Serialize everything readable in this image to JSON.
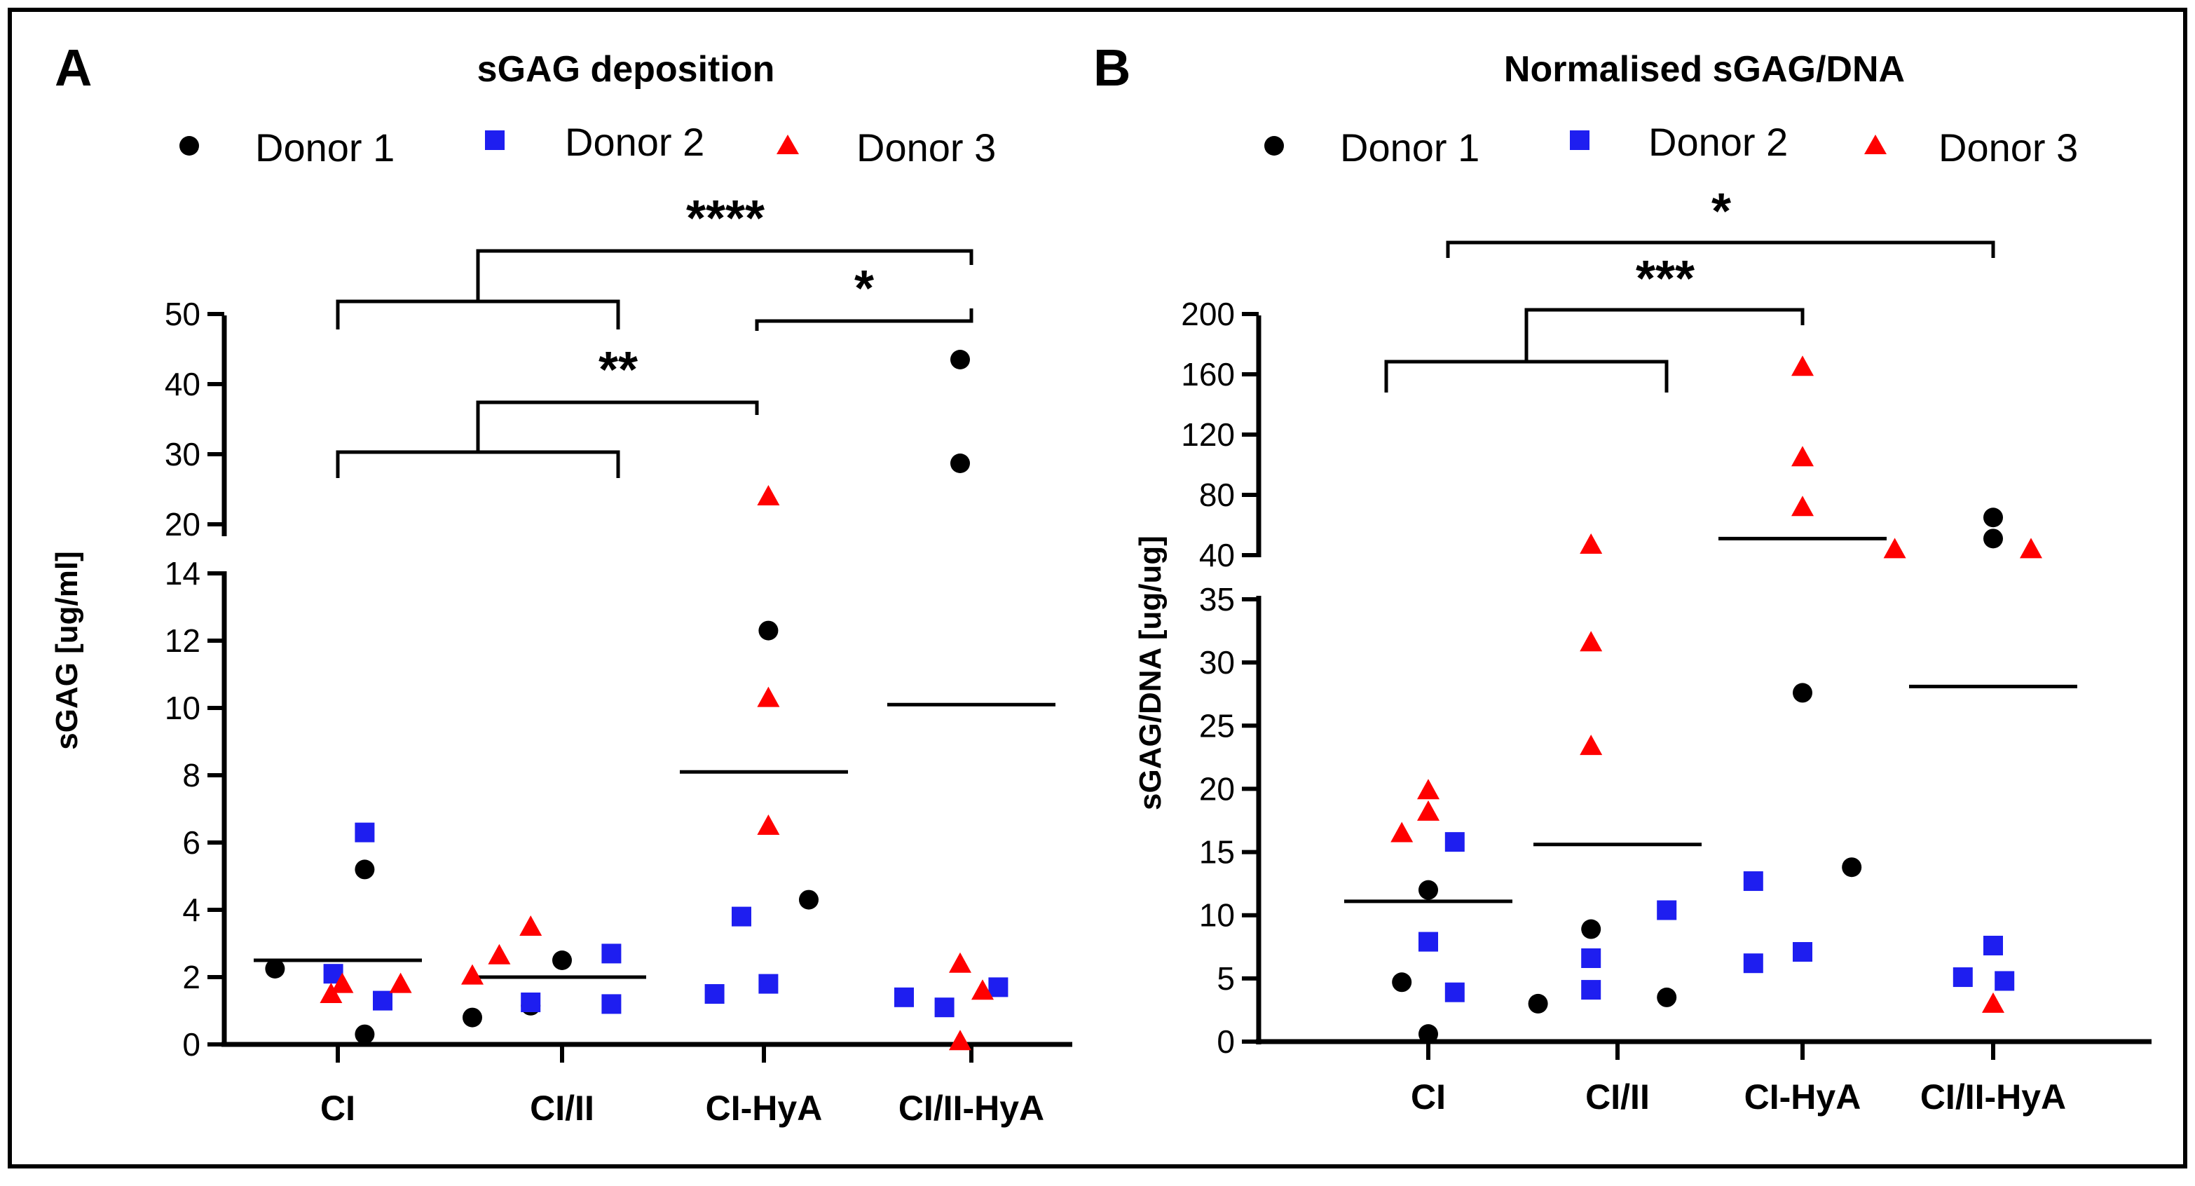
{
  "figure": {
    "border_color": "#000000"
  },
  "colors": {
    "donor1": "#000000",
    "donor2": "#1e1ef0",
    "donor3": "#ff0000",
    "axis": "#000000",
    "median": "#000000"
  },
  "legend": [
    {
      "label": "Donor 1",
      "marker": "circle",
      "series": "donor1"
    },
    {
      "label": "Donor 2",
      "marker": "square",
      "series": "donor2"
    },
    {
      "label": "Donor 3",
      "marker": "triangle",
      "series": "donor3"
    }
  ],
  "chart_data": [
    {
      "type": "scatter",
      "panel_label": "A",
      "title": "sGAG deposition",
      "ylabel": "sGAG [ug/ml]",
      "xlabel": "",
      "categories": [
        "CI",
        "CI/II",
        "CI-HyA",
        "CI/II-HyA"
      ],
      "y_axis_segments": [
        {
          "ylim": [
            0,
            14
          ],
          "ticks": [
            "0",
            "2",
            "4",
            "6",
            "8",
            "10",
            "12",
            "14"
          ],
          "tick_values": [
            0,
            2,
            4,
            6,
            8,
            10,
            12,
            14
          ]
        },
        {
          "ylim": [
            18,
            50
          ],
          "ticks": [
            "20",
            "30",
            "40",
            "50"
          ],
          "tick_values": [
            20,
            30,
            40,
            50
          ]
        }
      ],
      "median_lines": [
        2.5,
        2.0,
        8.1,
        10.1
      ],
      "series": [
        {
          "name": "Donor 1",
          "key": "donor1",
          "points": [
            {
              "category": "CI",
              "offset": -0.28,
              "y": 2.25
            },
            {
              "category": "CI",
              "offset": 0.12,
              "y": 5.2
            },
            {
              "category": "CI",
              "offset": 0.12,
              "y": 0.3
            },
            {
              "category": "CI/II",
              "offset": -0.4,
              "y": 0.8
            },
            {
              "category": "CI/II",
              "offset": -0.14,
              "y": 1.15
            },
            {
              "category": "CI/II",
              "offset": 0.0,
              "y": 2.5
            },
            {
              "category": "CI-HyA",
              "offset": 0.02,
              "y": 12.3
            },
            {
              "category": "CI-HyA",
              "offset": 0.2,
              "y": 4.3
            },
            {
              "category": "CI/II-HyA",
              "offset": -0.05,
              "y": 43.5
            },
            {
              "category": "CI/II-HyA",
              "offset": -0.05,
              "y": 28.7
            }
          ]
        },
        {
          "name": "Donor 2",
          "key": "donor2",
          "points": [
            {
              "category": "CI",
              "offset": 0.12,
              "y": 6.3
            },
            {
              "category": "CI",
              "offset": -0.02,
              "y": 2.1
            },
            {
              "category": "CI",
              "offset": 0.2,
              "y": 1.3
            },
            {
              "category": "CI/II",
              "offset": -0.14,
              "y": 1.25
            },
            {
              "category": "CI/II",
              "offset": 0.22,
              "y": 2.7
            },
            {
              "category": "CI/II",
              "offset": 0.22,
              "y": 1.2
            },
            {
              "category": "CI-HyA",
              "offset": -0.1,
              "y": 3.8
            },
            {
              "category": "CI-HyA",
              "offset": 0.02,
              "y": 1.8
            },
            {
              "category": "CI-HyA",
              "offset": -0.22,
              "y": 1.5
            },
            {
              "category": "CI/II-HyA",
              "offset": -0.3,
              "y": 1.4
            },
            {
              "category": "CI/II-HyA",
              "offset": -0.12,
              "y": 1.1
            },
            {
              "category": "CI/II-HyA",
              "offset": 0.12,
              "y": 1.7
            }
          ]
        },
        {
          "name": "Donor 3",
          "key": "donor3",
          "points": [
            {
              "category": "CI",
              "offset": 0.02,
              "y": 1.8
            },
            {
              "category": "CI",
              "offset": -0.03,
              "y": 1.5
            },
            {
              "category": "CI",
              "offset": 0.28,
              "y": 1.8
            },
            {
              "category": "CI/II",
              "offset": -0.4,
              "y": 2.05
            },
            {
              "category": "CI/II",
              "offset": -0.28,
              "y": 2.65
            },
            {
              "category": "CI/II",
              "offset": -0.14,
              "y": 3.5
            },
            {
              "category": "CI-HyA",
              "offset": 0.02,
              "y": 24.0
            },
            {
              "category": "CI-HyA",
              "offset": 0.02,
              "y": 10.3
            },
            {
              "category": "CI-HyA",
              "offset": 0.02,
              "y": 6.5
            },
            {
              "category": "CI/II-HyA",
              "offset": -0.05,
              "y": 2.4
            },
            {
              "category": "CI/II-HyA",
              "offset": 0.05,
              "y": 1.6
            },
            {
              "category": "CI/II-HyA",
              "offset": -0.05,
              "y": 0.1
            }
          ]
        }
      ],
      "significance": [
        {
          "label": "****",
          "groups": [
            "CI + CI/II",
            "CI-HyA + CI/II-HyA"
          ]
        },
        {
          "label": "*",
          "groups": [
            "CI-HyA",
            "CI/II-HyA"
          ]
        },
        {
          "label": "**",
          "groups": [
            "CI + CI/II",
            "CI-HyA"
          ]
        }
      ]
    },
    {
      "type": "scatter",
      "panel_label": "B",
      "title": "Normalised sGAG/DNA",
      "ylabel": "sGAG/DNA [ug/ug]",
      "xlabel": "",
      "categories": [
        "CI",
        "CI/II",
        "CI-HyA",
        "CI/II-HyA"
      ],
      "y_axis_segments": [
        {
          "ylim": [
            0,
            35
          ],
          "ticks": [
            "0",
            "5",
            "10",
            "15",
            "20",
            "25",
            "30",
            "35"
          ],
          "tick_values": [
            0,
            5,
            10,
            15,
            20,
            25,
            30,
            35
          ]
        },
        {
          "ylim": [
            40,
            200
          ],
          "ticks": [
            "40",
            "80",
            "120",
            "160",
            "200"
          ],
          "tick_values": [
            40,
            80,
            120,
            160,
            200
          ]
        }
      ],
      "median_lines": [
        11.1,
        15.6,
        51.0,
        28.1
      ],
      "series": [
        {
          "name": "Donor 1",
          "key": "donor1",
          "points": [
            {
              "category": "CI",
              "offset": 0.0,
              "y": 12.0
            },
            {
              "category": "CI",
              "offset": -0.14,
              "y": 4.7
            },
            {
              "category": "CI",
              "offset": 0.0,
              "y": 0.6
            },
            {
              "category": "CI/II",
              "offset": -0.14,
              "y": 8.9
            },
            {
              "category": "CI/II",
              "offset": -0.42,
              "y": 3.0
            },
            {
              "category": "CI/II",
              "offset": 0.26,
              "y": 3.5
            },
            {
              "category": "CI-HyA",
              "offset": 0.0,
              "y": 27.6
            },
            {
              "category": "CI-HyA",
              "offset": 0.26,
              "y": 13.8
            },
            {
              "category": "CI/II-HyA",
              "offset": 0.0,
              "y": 65.0
            },
            {
              "category": "CI/II-HyA",
              "offset": 0.0,
              "y": 51.0
            }
          ]
        },
        {
          "name": "Donor 2",
          "key": "donor2",
          "points": [
            {
              "category": "CI",
              "offset": 0.14,
              "y": 15.8
            },
            {
              "category": "CI",
              "offset": 0.0,
              "y": 7.9
            },
            {
              "category": "CI",
              "offset": 0.14,
              "y": 3.9
            },
            {
              "category": "CI/II",
              "offset": -0.14,
              "y": 6.6
            },
            {
              "category": "CI/II",
              "offset": -0.14,
              "y": 4.1
            },
            {
              "category": "CI/II",
              "offset": 0.26,
              "y": 10.4
            },
            {
              "category": "CI-HyA",
              "offset": -0.26,
              "y": 12.7
            },
            {
              "category": "CI-HyA",
              "offset": -0.26,
              "y": 6.2
            },
            {
              "category": "CI-HyA",
              "offset": 0.0,
              "y": 7.1
            },
            {
              "category": "CI/II-HyA",
              "offset": 0.0,
              "y": 7.6
            },
            {
              "category": "CI/II-HyA",
              "offset": -0.16,
              "y": 5.1
            },
            {
              "category": "CI/II-HyA",
              "offset": 0.06,
              "y": 4.8
            }
          ]
        },
        {
          "name": "Donor 3",
          "key": "donor3",
          "points": [
            {
              "category": "CI",
              "offset": 0.0,
              "y": 19.9
            },
            {
              "category": "CI",
              "offset": 0.0,
              "y": 18.2
            },
            {
              "category": "CI",
              "offset": -0.14,
              "y": 16.5
            },
            {
              "category": "CI/II",
              "offset": -0.14,
              "y": 47.0
            },
            {
              "category": "CI/II",
              "offset": -0.14,
              "y": 31.6
            },
            {
              "category": "CI/II",
              "offset": -0.14,
              "y": 23.4
            },
            {
              "category": "CI-HyA",
              "offset": 0.0,
              "y": 165.0
            },
            {
              "category": "CI-HyA",
              "offset": 0.0,
              "y": 105.0
            },
            {
              "category": "CI-HyA",
              "offset": 0.0,
              "y": 72.0
            },
            {
              "category": "CI/II-HyA",
              "offset": -0.52,
              "y": 44.0
            },
            {
              "category": "CI/II-HyA",
              "offset": 0.2,
              "y": 44.0
            },
            {
              "category": "CI/II-HyA",
              "offset": 0.0,
              "y": 3.0
            }
          ]
        }
      ],
      "significance": [
        {
          "label": "*",
          "groups": [
            "CI",
            "CI/II-HyA"
          ]
        },
        {
          "label": "***",
          "groups": [
            "CI + CI/II",
            "CI-HyA"
          ]
        }
      ]
    }
  ]
}
